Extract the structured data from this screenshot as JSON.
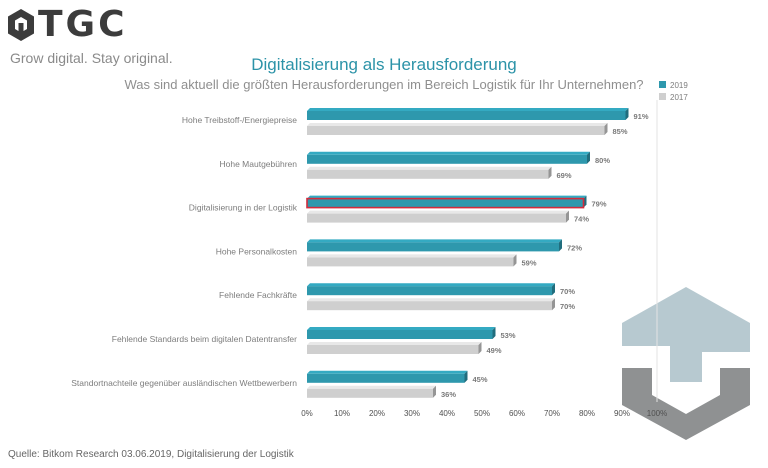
{
  "brand": {
    "logo_text": "TGC",
    "tagline": "Grow digital. Stay original."
  },
  "source": "Quelle: Bitkom Research 03.06.2019, Digitalisierung der Logistik",
  "colors": {
    "series_2019": "#2e98ad",
    "series_2017": "#cfcfcf",
    "highlight": "#d12b3c",
    "title": "#2c93a8"
  },
  "chart_data": {
    "type": "bar",
    "orientation": "horizontal",
    "title": "Digitalisierung als Herausforderung",
    "subtitle": "Was sind aktuell die größten Herausforderungen im Bereich Logistik für Ihr Unternehmen?",
    "categories": [
      "Hohe Treibstoff-/Energiepreise",
      "Hohe Mautgebühren",
      "Digitalisierung in der Logistik",
      "Hohe Personalkosten",
      "Fehlende Fachkräfte",
      "Fehlende Standards beim digitalen Datentransfer",
      "Standortnachteile gegenüber ausländischen Wettbewerbern"
    ],
    "series": [
      {
        "name": "2019",
        "values": [
          91,
          80,
          79,
          72,
          70,
          53,
          45
        ]
      },
      {
        "name": "2017",
        "values": [
          85,
          69,
          74,
          59,
          70,
          49,
          36
        ]
      }
    ],
    "value_labels": [
      [
        "91%",
        "80%",
        "79%",
        "72%",
        "70%",
        "53%",
        "45%"
      ],
      [
        "85%",
        "69%",
        "74%",
        "59%",
        "70%",
        "49%",
        "36%"
      ]
    ],
    "highlighted_category": "Digitalisierung in der Logistik",
    "xlim": [
      0,
      100
    ],
    "x_ticks": [
      0,
      10,
      20,
      30,
      40,
      50,
      60,
      70,
      80,
      90,
      100
    ],
    "x_tick_labels": [
      "0%",
      "10%",
      "20%",
      "30%",
      "40%",
      "50%",
      "60%",
      "70%",
      "80%",
      "90%",
      "100%"
    ],
    "legend_position": "top-right",
    "grid": false
  }
}
